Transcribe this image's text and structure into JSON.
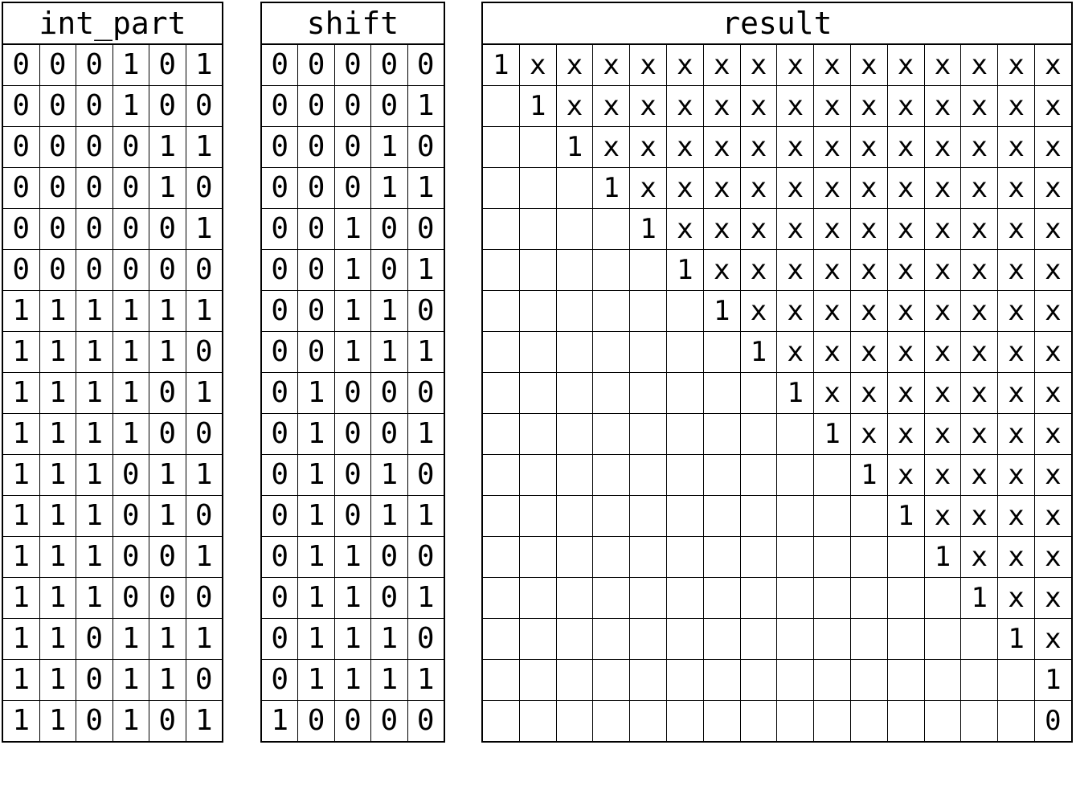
{
  "tables": {
    "int_part": {
      "header": "int_part",
      "rows": [
        [
          "0",
          "0",
          "0",
          "1",
          "0",
          "1"
        ],
        [
          "0",
          "0",
          "0",
          "1",
          "0",
          "0"
        ],
        [
          "0",
          "0",
          "0",
          "0",
          "1",
          "1"
        ],
        [
          "0",
          "0",
          "0",
          "0",
          "1",
          "0"
        ],
        [
          "0",
          "0",
          "0",
          "0",
          "0",
          "1"
        ],
        [
          "0",
          "0",
          "0",
          "0",
          "0",
          "0"
        ],
        [
          "1",
          "1",
          "1",
          "1",
          "1",
          "1"
        ],
        [
          "1",
          "1",
          "1",
          "1",
          "1",
          "0"
        ],
        [
          "1",
          "1",
          "1",
          "1",
          "0",
          "1"
        ],
        [
          "1",
          "1",
          "1",
          "1",
          "0",
          "0"
        ],
        [
          "1",
          "1",
          "1",
          "0",
          "1",
          "1"
        ],
        [
          "1",
          "1",
          "1",
          "0",
          "1",
          "0"
        ],
        [
          "1",
          "1",
          "1",
          "0",
          "0",
          "1"
        ],
        [
          "1",
          "1",
          "1",
          "0",
          "0",
          "0"
        ],
        [
          "1",
          "1",
          "0",
          "1",
          "1",
          "1"
        ],
        [
          "1",
          "1",
          "0",
          "1",
          "1",
          "0"
        ],
        [
          "1",
          "1",
          "0",
          "1",
          "0",
          "1"
        ]
      ]
    },
    "shift": {
      "header": "shift",
      "rows": [
        [
          "0",
          "0",
          "0",
          "0",
          "0"
        ],
        [
          "0",
          "0",
          "0",
          "0",
          "1"
        ],
        [
          "0",
          "0",
          "0",
          "1",
          "0"
        ],
        [
          "0",
          "0",
          "0",
          "1",
          "1"
        ],
        [
          "0",
          "0",
          "1",
          "0",
          "0"
        ],
        [
          "0",
          "0",
          "1",
          "0",
          "1"
        ],
        [
          "0",
          "0",
          "1",
          "1",
          "0"
        ],
        [
          "0",
          "0",
          "1",
          "1",
          "1"
        ],
        [
          "0",
          "1",
          "0",
          "0",
          "0"
        ],
        [
          "0",
          "1",
          "0",
          "0",
          "1"
        ],
        [
          "0",
          "1",
          "0",
          "1",
          "0"
        ],
        [
          "0",
          "1",
          "0",
          "1",
          "1"
        ],
        [
          "0",
          "1",
          "1",
          "0",
          "0"
        ],
        [
          "0",
          "1",
          "1",
          "0",
          "1"
        ],
        [
          "0",
          "1",
          "1",
          "1",
          "0"
        ],
        [
          "0",
          "1",
          "1",
          "1",
          "1"
        ],
        [
          "1",
          "0",
          "0",
          "0",
          "0"
        ]
      ]
    },
    "result": {
      "header": "result",
      "rows": [
        [
          "1",
          "x",
          "x",
          "x",
          "x",
          "x",
          "x",
          "x",
          "x",
          "x",
          "x",
          "x",
          "x",
          "x",
          "x",
          "x"
        ],
        [
          "",
          "1",
          "x",
          "x",
          "x",
          "x",
          "x",
          "x",
          "x",
          "x",
          "x",
          "x",
          "x",
          "x",
          "x",
          "x"
        ],
        [
          "",
          "",
          "1",
          "x",
          "x",
          "x",
          "x",
          "x",
          "x",
          "x",
          "x",
          "x",
          "x",
          "x",
          "x",
          "x"
        ],
        [
          "",
          "",
          "",
          "1",
          "x",
          "x",
          "x",
          "x",
          "x",
          "x",
          "x",
          "x",
          "x",
          "x",
          "x",
          "x"
        ],
        [
          "",
          "",
          "",
          "",
          "1",
          "x",
          "x",
          "x",
          "x",
          "x",
          "x",
          "x",
          "x",
          "x",
          "x",
          "x"
        ],
        [
          "",
          "",
          "",
          "",
          "",
          "1",
          "x",
          "x",
          "x",
          "x",
          "x",
          "x",
          "x",
          "x",
          "x",
          "x"
        ],
        [
          "",
          "",
          "",
          "",
          "",
          "",
          "1",
          "x",
          "x",
          "x",
          "x",
          "x",
          "x",
          "x",
          "x",
          "x"
        ],
        [
          "",
          "",
          "",
          "",
          "",
          "",
          "",
          "1",
          "x",
          "x",
          "x",
          "x",
          "x",
          "x",
          "x",
          "x"
        ],
        [
          "",
          "",
          "",
          "",
          "",
          "",
          "",
          "",
          "1",
          "x",
          "x",
          "x",
          "x",
          "x",
          "x",
          "x"
        ],
        [
          "",
          "",
          "",
          "",
          "",
          "",
          "",
          "",
          "",
          "1",
          "x",
          "x",
          "x",
          "x",
          "x",
          "x"
        ],
        [
          "",
          "",
          "",
          "",
          "",
          "",
          "",
          "",
          "",
          "",
          "1",
          "x",
          "x",
          "x",
          "x",
          "x"
        ],
        [
          "",
          "",
          "",
          "",
          "",
          "",
          "",
          "",
          "",
          "",
          "",
          "1",
          "x",
          "x",
          "x",
          "x"
        ],
        [
          "",
          "",
          "",
          "",
          "",
          "",
          "",
          "",
          "",
          "",
          "",
          "",
          "1",
          "x",
          "x",
          "x"
        ],
        [
          "",
          "",
          "",
          "",
          "",
          "",
          "",
          "",
          "",
          "",
          "",
          "",
          "",
          "1",
          "x",
          "x"
        ],
        [
          "",
          "",
          "",
          "",
          "",
          "",
          "",
          "",
          "",
          "",
          "",
          "",
          "",
          "",
          "1",
          "x"
        ],
        [
          "",
          "",
          "",
          "",
          "",
          "",
          "",
          "",
          "",
          "",
          "",
          "",
          "",
          "",
          "",
          "1"
        ],
        [
          "",
          "",
          "",
          "",
          "",
          "",
          "",
          "",
          "",
          "",
          "",
          "",
          "",
          "",
          "",
          "0"
        ]
      ]
    }
  }
}
